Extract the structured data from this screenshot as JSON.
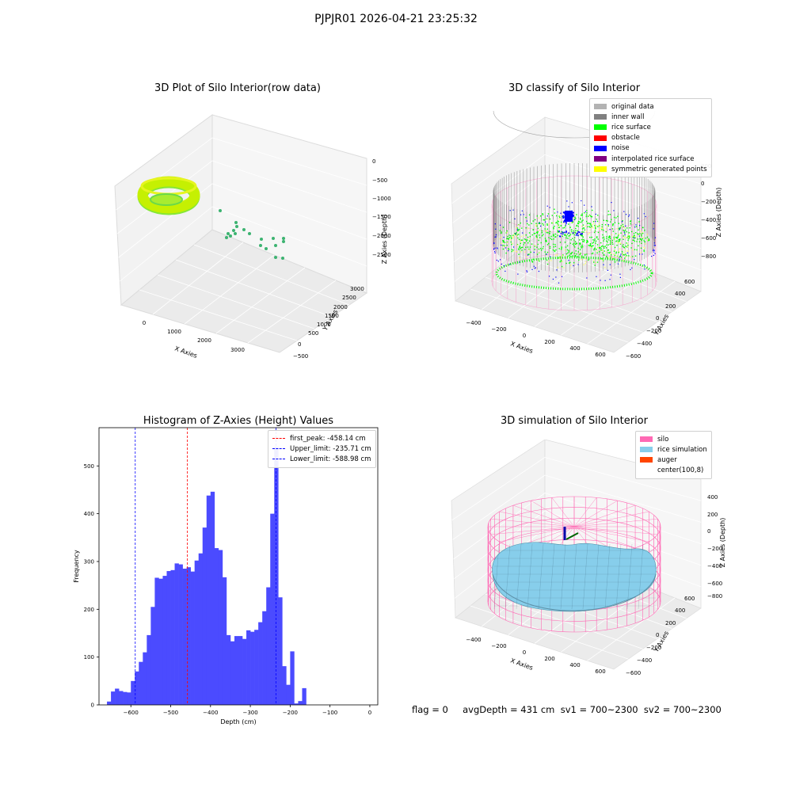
{
  "suptitle": "PJPJR01 2026-04-21 23:25:32",
  "status_line": "flag = 0     avgDepth = 431 cm  sv1 = 700~2300  sv2 = 700~2300",
  "colors": {
    "original": "#b3b3b3",
    "inner_wall": "#808080",
    "rice": "#00ff00",
    "obstacle": "#ff0000",
    "noise": "#0000ff",
    "interp": "#800080",
    "symmetric": "#ffff00",
    "silo": "#ff69b4",
    "sim": "#87ceeb",
    "auger": "#ff4500",
    "hist_bar": "#4b4bff",
    "first_peak": "#ff0000",
    "limit": "#0000ff"
  },
  "panels": {
    "raw": {
      "title": "3D Plot of Silo Interior(row data)",
      "xlabel": "X Axies",
      "ylabel": "Y Axies",
      "zlabel": "Z Axies (Depth)",
      "xticks": [
        "0",
        "1000",
        "2000",
        "3000"
      ],
      "yticks": [
        "−500",
        "0",
        "500",
        "1000",
        "1500",
        "2000",
        "2500",
        "3000"
      ],
      "zticks": [
        "0",
        "−500",
        "−1000",
        "−1500",
        "−2000",
        "−2500"
      ]
    },
    "classify": {
      "title": "3D classify of Silo Interior",
      "xlabel": "X Axies",
      "ylabel": "Y Axies",
      "zlabel": "Z Axies (Depth)",
      "xticks": [
        "−400",
        "−200",
        "0",
        "200",
        "400",
        "600"
      ],
      "yticks": [
        "−600",
        "−400",
        "−200",
        "0",
        "200",
        "400",
        "600"
      ],
      "zticks": [
        "200",
        "0",
        "−200",
        "−400",
        "−600",
        "−800"
      ],
      "legend": [
        {
          "label": "original data",
          "color": "#b3b3b3"
        },
        {
          "label": "inner wall",
          "color": "#808080"
        },
        {
          "label": "rice surface",
          "color": "#00ff00"
        },
        {
          "label": "obstacle",
          "color": "#ff0000"
        },
        {
          "label": "noise",
          "color": "#0000ff"
        },
        {
          "label": "interpolated rice surface",
          "color": "#800080"
        },
        {
          "label": "symmetric generated points",
          "color": "#ffff00"
        }
      ]
    },
    "simulation": {
      "title": "3D simulation of Silo Interior",
      "xlabel": "X Axies",
      "ylabel": "Y Axies",
      "zlabel": "Z Axies (Depth)",
      "xticks": [
        "−400",
        "−200",
        "0",
        "200",
        "400",
        "600"
      ],
      "yticks": [
        "−600",
        "−400",
        "−200",
        "0",
        "200",
        "400",
        "600"
      ],
      "zticks": [
        "400",
        "200",
        "0",
        "−200",
        "−400",
        "−600",
        "−800"
      ],
      "legend": [
        {
          "label": "silo",
          "color": "#ff69b4"
        },
        {
          "label": "rice simulation",
          "color": "#87ceeb"
        },
        {
          "label": "auger",
          "color": "#ff4500"
        },
        {
          "label": "center(100,8)",
          "color": ""
        }
      ]
    }
  },
  "chart_data": [
    {
      "type": "bar",
      "title": "Histogram of Z-Axies (Height) Values",
      "xlabel": "Depth (cm)",
      "ylabel": "Frequency",
      "xlim": [
        -680,
        20
      ],
      "ylim": [
        0,
        580
      ],
      "xticks": [
        -600,
        -500,
        -400,
        -300,
        -200,
        -100,
        0
      ],
      "yticks": [
        0,
        100,
        200,
        300,
        400,
        500
      ],
      "bin_start": -660,
      "bin_width": 10,
      "values": [
        7,
        28,
        34,
        29,
        27,
        26,
        50,
        70,
        90,
        110,
        146,
        205,
        266,
        264,
        270,
        280,
        282,
        296,
        294,
        285,
        288,
        279,
        302,
        317,
        371,
        438,
        446,
        328,
        324,
        267,
        146,
        133,
        144,
        144,
        138,
        156,
        153,
        157,
        173,
        196,
        246,
        400,
        540,
        225,
        81,
        42,
        112,
        3,
        8,
        35
      ],
      "vlines": [
        {
          "name": "first_peak: -458.14 cm",
          "x": -458.14,
          "color": "#ff0000"
        },
        {
          "name": "Upper_limit: -235.71 cm",
          "x": -235.71,
          "color": "#0000ff"
        },
        {
          "name": "Lower_limit: -588.98 cm",
          "x": -588.98,
          "color": "#0000ff"
        }
      ],
      "legend_position": "top-right"
    }
  ]
}
